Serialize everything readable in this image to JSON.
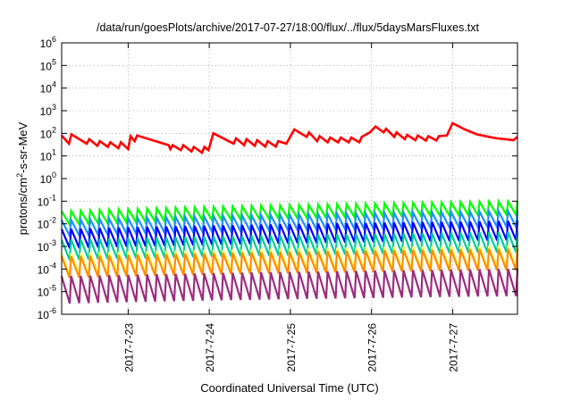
{
  "chart_data": {
    "type": "line",
    "title": "/data/run/goesPlots/archive/2017-07-27/18:00/flux/../flux/5daysMarsFluxes.txt",
    "xlabel": "Coordinated Universal Time (UTC)",
    "ylabel_main": "protons/cm",
    "ylabel_sup": "2",
    "ylabel_tail": "-s-sr-MeV",
    "y_scale": "log",
    "ylim_exp": [
      -6,
      6
    ],
    "y_ticks": [
      {
        "base": "10",
        "exp": "-6"
      },
      {
        "base": "10",
        "exp": "-5"
      },
      {
        "base": "10",
        "exp": "-4"
      },
      {
        "base": "10",
        "exp": "-3"
      },
      {
        "base": "10",
        "exp": "-2"
      },
      {
        "base": "10",
        "exp": "-1"
      },
      {
        "base": "10",
        "exp": "0"
      },
      {
        "base": "10",
        "exp": "1"
      },
      {
        "base": "10",
        "exp": "2"
      },
      {
        "base": "10",
        "exp": "3"
      },
      {
        "base": "10",
        "exp": "4"
      },
      {
        "base": "10",
        "exp": "5"
      },
      {
        "base": "10",
        "exp": "6"
      }
    ],
    "xlim_days": [
      22.18,
      27.8
    ],
    "x_ticks": [
      {
        "label": "2017-7-23",
        "day": 23
      },
      {
        "label": "2017-7-24",
        "day": 24
      },
      {
        "label": "2017-7-25",
        "day": 25
      },
      {
        "label": "2017-7-26",
        "day": 26
      },
      {
        "label": "2017-7-27",
        "day": 27
      }
    ],
    "grid": true,
    "legend": "none",
    "series": [
      {
        "color": "#ff0000",
        "stroke": 2.6,
        "points": [
          [
            22.18,
            80
          ],
          [
            22.27,
            35
          ],
          [
            22.3,
            90
          ],
          [
            22.49,
            35
          ],
          [
            22.52,
            55
          ],
          [
            22.62,
            28
          ],
          [
            22.65,
            45
          ],
          [
            22.75,
            25
          ],
          [
            22.78,
            40
          ],
          [
            22.88,
            22
          ],
          [
            22.91,
            40
          ],
          [
            23.0,
            20
          ],
          [
            23.03,
            75
          ],
          [
            23.08,
            45
          ],
          [
            23.11,
            80
          ],
          [
            23.5,
            30
          ],
          [
            23.52,
            20
          ],
          [
            23.55,
            30
          ],
          [
            23.65,
            18
          ],
          [
            23.68,
            30
          ],
          [
            23.78,
            16
          ],
          [
            23.81,
            25
          ],
          [
            23.91,
            14
          ],
          [
            23.94,
            25
          ],
          [
            23.99,
            18
          ],
          [
            24.05,
            100
          ],
          [
            24.3,
            35
          ],
          [
            24.33,
            60
          ],
          [
            24.43,
            30
          ],
          [
            24.46,
            55
          ],
          [
            24.56,
            28
          ],
          [
            24.59,
            50
          ],
          [
            24.69,
            26
          ],
          [
            24.72,
            45
          ],
          [
            24.82,
            26
          ],
          [
            24.85,
            45
          ],
          [
            24.95,
            35
          ],
          [
            25.05,
            150
          ],
          [
            25.2,
            70
          ],
          [
            25.23,
            110
          ],
          [
            25.33,
            45
          ],
          [
            25.36,
            75
          ],
          [
            25.46,
            40
          ],
          [
            25.49,
            65
          ],
          [
            25.59,
            40
          ],
          [
            25.62,
            65
          ],
          [
            25.72,
            40
          ],
          [
            25.75,
            65
          ],
          [
            25.85,
            40
          ],
          [
            25.88,
            70
          ],
          [
            25.98,
            110
          ],
          [
            26.05,
            200
          ],
          [
            26.15,
            110
          ],
          [
            26.18,
            160
          ],
          [
            26.28,
            70
          ],
          [
            26.31,
            110
          ],
          [
            26.41,
            55
          ],
          [
            26.44,
            85
          ],
          [
            26.54,
            50
          ],
          [
            26.57,
            80
          ],
          [
            26.67,
            48
          ],
          [
            26.7,
            75
          ],
          [
            26.8,
            48
          ],
          [
            26.83,
            75
          ],
          [
            26.93,
            80
          ],
          [
            27.0,
            280
          ],
          [
            27.15,
            150
          ],
          [
            27.3,
            90
          ],
          [
            27.45,
            70
          ],
          [
            27.55,
            60
          ],
          [
            27.65,
            55
          ],
          [
            27.75,
            50
          ],
          [
            27.8,
            70
          ]
        ]
      },
      {
        "color": "#00ff00",
        "base": 0.018,
        "amp": 0.6,
        "step": 0.0124,
        "cycles": 48
      },
      {
        "color": "#1e90ff",
        "base": 0.0065,
        "amp": 0.7,
        "step": 0.0108,
        "cycles": 48
      },
      {
        "color": "#0000ff",
        "base": 0.0022,
        "amp": 0.85,
        "step": 0.0091,
        "cycles": 48
      },
      {
        "color": "#00cc99",
        "base": 0.0007,
        "amp": 0.9,
        "step": 0.0086,
        "cycles": 48
      },
      {
        "color": "#ffff66",
        "base": 0.00017,
        "amp": 0.95,
        "step": 0.0083,
        "cycles": 48
      },
      {
        "color": "#ff8c00",
        "base": 0.00012,
        "amp": 0.95,
        "step": 0.0087,
        "cycles": 48
      },
      {
        "color": "#9b2d7f",
        "base": 1.2e-05,
        "amp": 1.2,
        "step": 0.0079,
        "cycles": 48
      }
    ]
  }
}
